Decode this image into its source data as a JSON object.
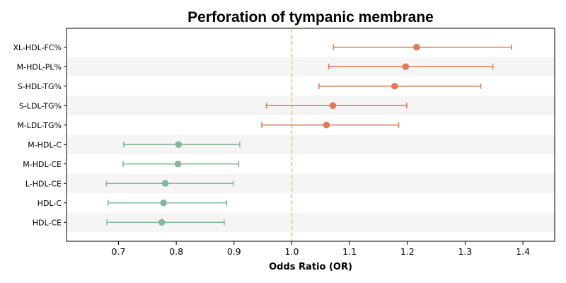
{
  "chart_data": {
    "type": "forest",
    "title": "Perforation of tympanic membrane",
    "xlabel": "Odds Ratio (OR)",
    "xlim": [
      0.61,
      1.455
    ],
    "xticks": [
      0.7,
      0.8,
      0.9,
      1.0,
      1.1,
      1.2,
      1.3,
      1.4
    ],
    "reference_line": 1.0,
    "colors": {
      "risk": "#e07b5a",
      "protective": "#85b89a",
      "reference": "#f0c27a",
      "band": "#f5f5f5"
    },
    "rows": [
      {
        "label": "XL-HDL-FC%",
        "or": 1.216,
        "lower": 1.072,
        "upper": 1.38,
        "group": "risk"
      },
      {
        "label": "M-HDL-PL%",
        "or": 1.197,
        "lower": 1.064,
        "upper": 1.348,
        "group": "risk"
      },
      {
        "label": "S-HDL-TG%",
        "or": 1.178,
        "lower": 1.047,
        "upper": 1.327,
        "group": "risk"
      },
      {
        "label": "S-LDL-TG%",
        "or": 1.071,
        "lower": 0.956,
        "upper": 1.199,
        "group": "risk"
      },
      {
        "label": "M-LDL-TG%",
        "or": 1.06,
        "lower": 0.948,
        "upper": 1.185,
        "group": "risk"
      },
      {
        "label": "M-HDL-C",
        "or": 0.804,
        "lower": 0.709,
        "upper": 0.91,
        "group": "protective"
      },
      {
        "label": "M-HDL-CE",
        "or": 0.803,
        "lower": 0.708,
        "upper": 0.908,
        "group": "protective"
      },
      {
        "label": "L-HDL-CE",
        "or": 0.781,
        "lower": 0.679,
        "upper": 0.899,
        "group": "protective"
      },
      {
        "label": "HDL-C",
        "or": 0.778,
        "lower": 0.682,
        "upper": 0.887,
        "group": "protective"
      },
      {
        "label": "HDL-CE",
        "or": 0.775,
        "lower": 0.68,
        "upper": 0.883,
        "group": "protective"
      }
    ]
  }
}
